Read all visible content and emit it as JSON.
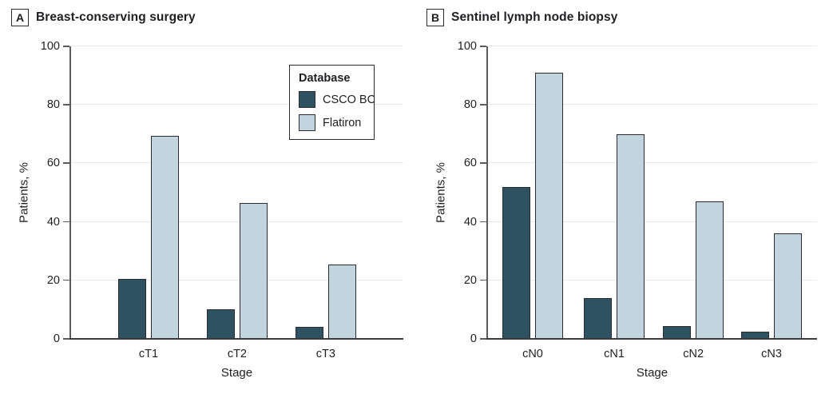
{
  "figure": {
    "ylabel": "Patients, %",
    "xlabel": "Stage"
  },
  "legend": {
    "title": "Database",
    "entries": [
      {
        "label": "CSCO BC",
        "color": "#2E5261"
      },
      {
        "label": "Flatiron",
        "color": "#C2D4DE"
      }
    ],
    "position": "upper middle of panel A"
  },
  "chart_data": [
    {
      "type": "bar",
      "panel_label": "A",
      "title": "Breast-conserving surgery",
      "categories": [
        "cT1",
        "cT2",
        "cT3"
      ],
      "series": [
        {
          "name": "CSCO BC",
          "color": "#2E5261",
          "values": [
            20.5,
            10,
            4
          ]
        },
        {
          "name": "Flatiron",
          "color": "#C2D4DE",
          "values": [
            69.5,
            46.5,
            25.5
          ]
        }
      ],
      "xlabel": "Stage",
      "ylabel": "Patients, %",
      "ylim": [
        0,
        100
      ],
      "yticks": [
        0,
        20,
        40,
        60,
        80,
        100
      ],
      "grid": true
    },
    {
      "type": "bar",
      "panel_label": "B",
      "title": "Sentinel lymph node biopsy",
      "categories": [
        "cN0",
        "cN1",
        "cN2",
        "cN3"
      ],
      "series": [
        {
          "name": "CSCO BC",
          "color": "#2E5261",
          "values": [
            52,
            14,
            4.5,
            2.5
          ]
        },
        {
          "name": "Flatiron",
          "color": "#C2D4DE",
          "values": [
            91,
            70,
            47,
            36
          ]
        }
      ],
      "xlabel": "Stage",
      "ylabel": "Patients, %",
      "ylim": [
        0,
        100
      ],
      "yticks": [
        0,
        20,
        40,
        60,
        80,
        100
      ],
      "grid": true
    }
  ]
}
